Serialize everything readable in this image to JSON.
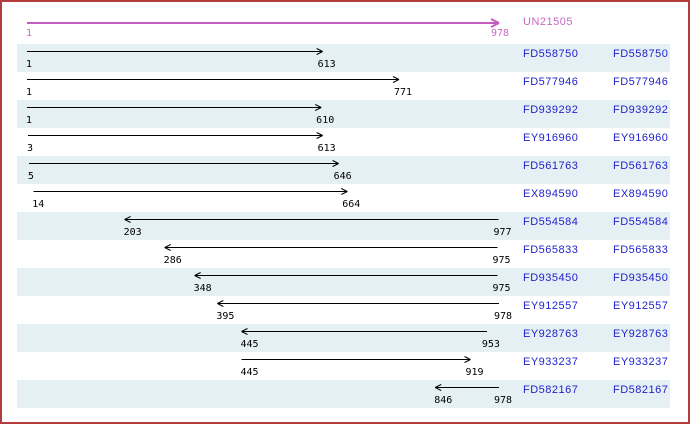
{
  "reference": {
    "id": "UN21505",
    "start": 1,
    "end": 978,
    "strand": "plus"
  },
  "alignments": [
    {
      "id": "FD558750",
      "start": 1,
      "end": 613,
      "strand": "plus"
    },
    {
      "id": "FD577946",
      "start": 1,
      "end": 771,
      "strand": "plus"
    },
    {
      "id": "FD939292",
      "start": 1,
      "end": 610,
      "strand": "plus"
    },
    {
      "id": "EY916960",
      "start": 3,
      "end": 613,
      "strand": "plus"
    },
    {
      "id": "FD561763",
      "start": 5,
      "end": 646,
      "strand": "plus"
    },
    {
      "id": "EX894590",
      "start": 14,
      "end": 664,
      "strand": "plus"
    },
    {
      "id": "FD554584",
      "start": 203,
      "end": 977,
      "strand": "minus"
    },
    {
      "id": "FD565833",
      "start": 286,
      "end": 975,
      "strand": "minus"
    },
    {
      "id": "FD935450",
      "start": 348,
      "end": 975,
      "strand": "minus"
    },
    {
      "id": "EY912557",
      "start": 395,
      "end": 978,
      "strand": "minus"
    },
    {
      "id": "EY928763",
      "start": 445,
      "end": 953,
      "strand": "minus"
    },
    {
      "id": "EY933237",
      "start": 445,
      "end": 919,
      "strand": "plus"
    },
    {
      "id": "FD582167",
      "start": 846,
      "end": 978,
      "strand": "minus"
    }
  ],
  "colors": {
    "reference_arrow": "#C35EC0",
    "reference_text": "#C869C4",
    "accession_link": "#2222CC",
    "coordinate_text": "#000000",
    "alignment_arrow": "#000000",
    "row_shade": "#E4F0F4",
    "page_border": "#B43C3C"
  }
}
